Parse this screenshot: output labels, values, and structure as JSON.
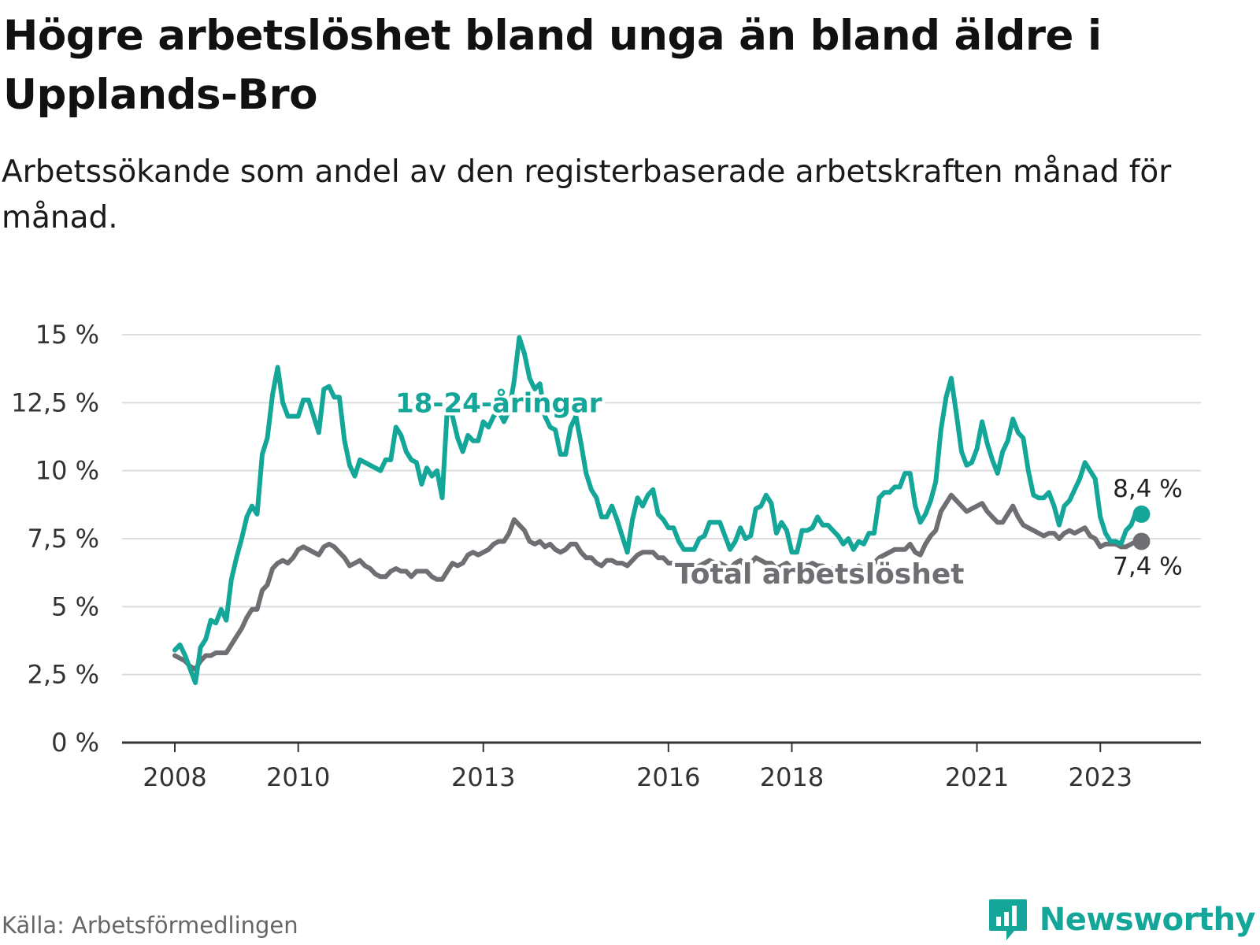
{
  "header": {
    "title": "Högre arbetslöshet bland unga än bland äldre i Upplands-Bro",
    "subtitle": "Arbetssökande som andel av den registerbaserade arbetskraften månad för månad."
  },
  "footer": {
    "source": "Källa: Arbetsförmedlingen",
    "brand": "Newsworthy"
  },
  "colors": {
    "youth": "#14a699",
    "total": "#6e6e73",
    "grid": "#dddddd",
    "axis": "#333333"
  },
  "chart_data": {
    "type": "line",
    "title": "Högre arbetslöshet bland unga än bland äldre i Upplands-Bro",
    "ylabel": "",
    "xlabel": "",
    "x_start": 2008.0,
    "x_step": 0.0833333,
    "xlim": [
      2007.25,
      2024.5
    ],
    "ylim": [
      0,
      15
    ],
    "y_ticks": [
      0,
      2.5,
      5,
      7.5,
      10,
      12.5,
      15
    ],
    "y_tick_labels": [
      "0 %",
      "2,5 %",
      "5 %",
      "7,5 %",
      "10 %",
      "12,5 %",
      "15 %"
    ],
    "x_ticks": [
      2008,
      2010,
      2013,
      2016,
      2018,
      2021,
      2023
    ],
    "x_tick_labels": [
      "2008",
      "2010",
      "2013",
      "2016",
      "2018",
      "2021",
      "2023"
    ],
    "grid": true,
    "series": [
      {
        "name": "18-24-åringar",
        "key": "youth",
        "end_label": "8,4 %",
        "values": [
          3.4,
          3.6,
          3.2,
          2.7,
          2.2,
          3.5,
          3.8,
          4.5,
          4.4,
          4.9,
          4.5,
          6.0,
          6.8,
          7.5,
          8.3,
          8.7,
          8.4,
          10.6,
          11.2,
          12.8,
          13.8,
          12.5,
          12.0,
          12.0,
          12.0,
          12.6,
          12.6,
          12.0,
          11.4,
          13.0,
          13.1,
          12.7,
          12.7,
          11.1,
          10.2,
          9.8,
          10.4,
          10.3,
          10.2,
          10.1,
          10.0,
          10.4,
          10.4,
          11.6,
          11.3,
          10.7,
          10.4,
          10.3,
          9.5,
          10.1,
          9.8,
          10.0,
          9.0,
          12.3,
          12.0,
          11.2,
          10.7,
          11.3,
          11.1,
          11.1,
          11.8,
          11.6,
          12.0,
          12.2,
          11.8,
          12.2,
          13.3,
          14.9,
          14.3,
          13.4,
          13.0,
          13.2,
          12.0,
          11.6,
          11.5,
          10.6,
          10.6,
          11.6,
          12.0,
          11.0,
          9.9,
          9.3,
          9.0,
          8.3,
          8.3,
          8.7,
          8.2,
          7.6,
          7.0,
          8.2,
          9.0,
          8.7,
          9.1,
          9.3,
          8.4,
          8.2,
          7.9,
          7.9,
          7.4,
          7.1,
          7.1,
          7.1,
          7.5,
          7.6,
          8.1,
          8.1,
          8.1,
          7.6,
          7.1,
          7.4,
          7.9,
          7.5,
          7.6,
          8.6,
          8.7,
          9.1,
          8.8,
          7.7,
          8.1,
          7.8,
          7.0,
          7.0,
          7.8,
          7.8,
          7.9,
          8.3,
          8.0,
          8.0,
          7.8,
          7.6,
          7.3,
          7.5,
          7.1,
          7.4,
          7.3,
          7.7,
          7.7,
          9.0,
          9.2,
          9.2,
          9.4,
          9.4,
          9.9,
          9.9,
          8.7,
          8.1,
          8.4,
          8.9,
          9.6,
          11.5,
          12.7,
          13.4,
          12.1,
          10.7,
          10.2,
          10.3,
          10.8,
          11.8,
          11.0,
          10.4,
          9.9,
          10.7,
          11.1,
          11.9,
          11.4,
          11.2,
          10.0,
          9.1,
          9.0,
          9.0,
          9.2,
          8.7,
          8.0,
          8.7,
          8.9,
          9.3,
          9.7,
          10.3,
          10.0,
          9.7,
          8.3,
          7.7,
          7.4,
          7.4,
          7.3,
          7.8,
          8.0,
          8.5,
          8.4
        ]
      },
      {
        "name": "Total arbetslöshet",
        "key": "total",
        "end_label": "7,4 %",
        "values": [
          3.2,
          3.1,
          3.0,
          2.8,
          2.7,
          3.0,
          3.2,
          3.2,
          3.3,
          3.3,
          3.3,
          3.6,
          3.9,
          4.2,
          4.6,
          4.9,
          4.9,
          5.6,
          5.8,
          6.4,
          6.6,
          6.7,
          6.6,
          6.8,
          7.1,
          7.2,
          7.1,
          7.0,
          6.9,
          7.2,
          7.3,
          7.2,
          7.0,
          6.8,
          6.5,
          6.6,
          6.7,
          6.5,
          6.4,
          6.2,
          6.1,
          6.1,
          6.3,
          6.4,
          6.3,
          6.3,
          6.1,
          6.3,
          6.3,
          6.3,
          6.1,
          6.0,
          6.0,
          6.3,
          6.6,
          6.5,
          6.6,
          6.9,
          7.0,
          6.9,
          7.0,
          7.1,
          7.3,
          7.4,
          7.4,
          7.7,
          8.2,
          8.0,
          7.8,
          7.4,
          7.3,
          7.4,
          7.2,
          7.3,
          7.1,
          7.0,
          7.1,
          7.3,
          7.3,
          7.0,
          6.8,
          6.8,
          6.6,
          6.5,
          6.7,
          6.7,
          6.6,
          6.6,
          6.5,
          6.7,
          6.9,
          7.0,
          7.0,
          7.0,
          6.8,
          6.8,
          6.6,
          6.6,
          6.5,
          6.5,
          6.5,
          6.4,
          6.5,
          6.6,
          6.7,
          6.6,
          6.6,
          6.5,
          6.4,
          6.6,
          6.7,
          6.5,
          6.6,
          6.8,
          6.7,
          6.6,
          6.6,
          6.4,
          6.5,
          6.6,
          6.4,
          6.4,
          6.6,
          6.5,
          6.6,
          6.5,
          6.5,
          6.4,
          6.4,
          6.3,
          6.5,
          6.4,
          6.3,
          6.5,
          6.4,
          6.5,
          6.6,
          6.8,
          6.9,
          7.0,
          7.1,
          7.1,
          7.1,
          7.3,
          7.0,
          6.9,
          7.3,
          7.6,
          7.8,
          8.5,
          8.8,
          9.1,
          8.9,
          8.7,
          8.5,
          8.6,
          8.7,
          8.8,
          8.5,
          8.3,
          8.1,
          8.1,
          8.4,
          8.7,
          8.3,
          8.0,
          7.9,
          7.8,
          7.7,
          7.6,
          7.7,
          7.7,
          7.5,
          7.7,
          7.8,
          7.7,
          7.8,
          7.9,
          7.6,
          7.5,
          7.2,
          7.3,
          7.3,
          7.3,
          7.2,
          7.2,
          7.3,
          7.4,
          7.4
        ]
      }
    ],
    "annotations": [
      {
        "series": "youth",
        "text": "18-24-åringar",
        "x": 2013.25,
        "y": 12.5
      },
      {
        "series": "total",
        "text": "Total arbetslöshet",
        "x": 2018.45,
        "y": 6.2
      }
    ]
  }
}
